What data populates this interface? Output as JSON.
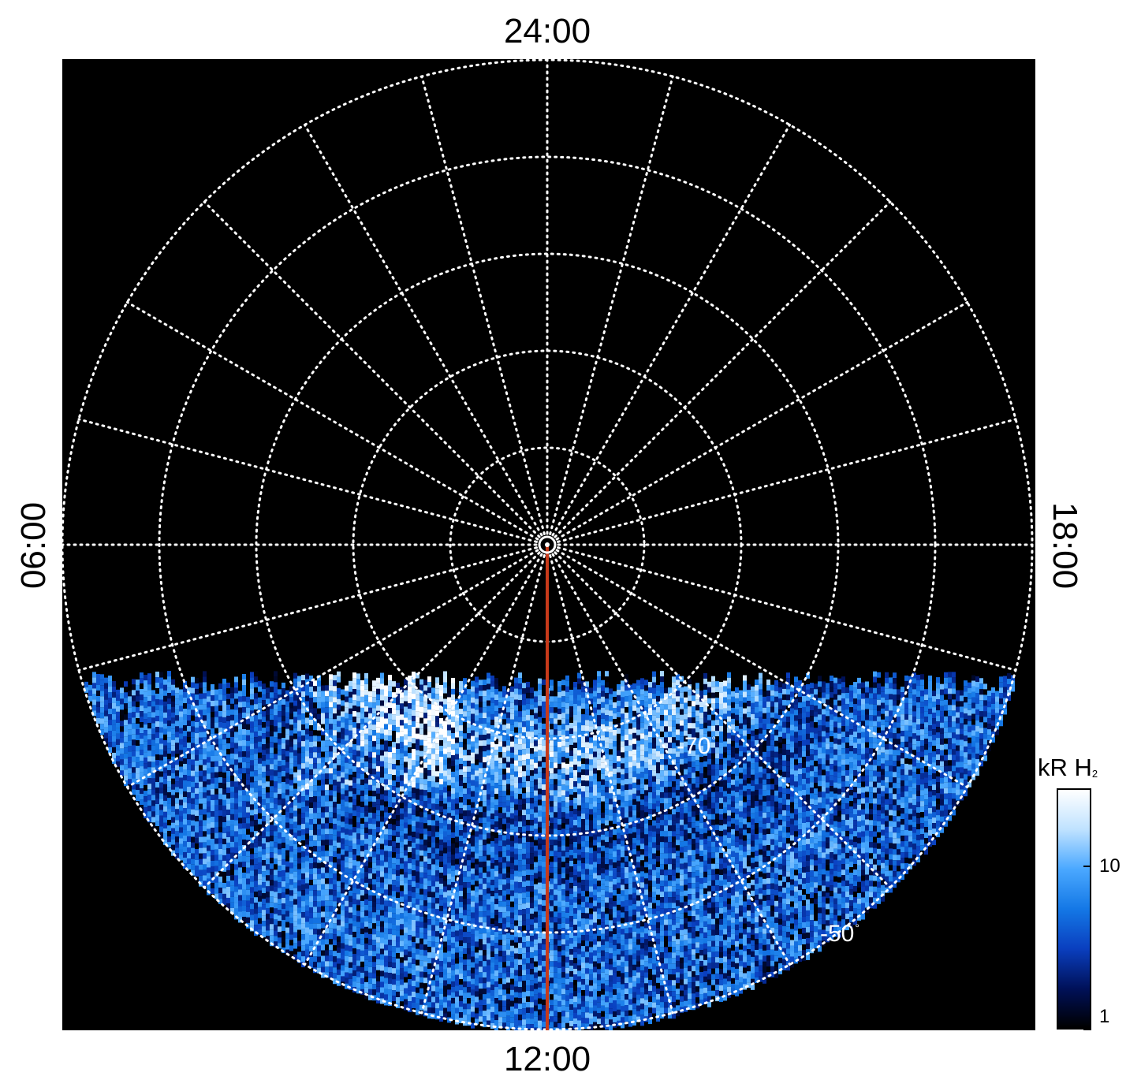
{
  "chart_data": {
    "type": "heatmap",
    "projection": "polar",
    "title": "",
    "local_time_labels": {
      "top": "24:00",
      "bottom": "12:00",
      "left": "06:00",
      "right": "18:00"
    },
    "latitude_labels": [
      {
        "text": "-70",
        "unit": "°"
      },
      {
        "text": "-50",
        "unit": "°"
      }
    ],
    "latitude_circles_deg": [
      -90,
      -80,
      -70,
      -60,
      -50,
      -40
    ],
    "meridian_spacing_hours": 1,
    "noon_meridian": {
      "local_time": "12:00",
      "color": "#c83a1a"
    },
    "colorbar": {
      "title": "kR H",
      "title_subscript": "2",
      "scale": "log",
      "range": [
        1,
        30
      ],
      "ticks": [
        {
          "value": 10,
          "label": "10"
        },
        {
          "value": 1,
          "label": "1"
        }
      ],
      "colors": [
        "#000000",
        "#00115a",
        "#0a3fbf",
        "#1478e6",
        "#4aa8ff",
        "#bfe2ff",
        "#ffffff"
      ]
    },
    "grid": true,
    "legend": "colorbar right"
  }
}
